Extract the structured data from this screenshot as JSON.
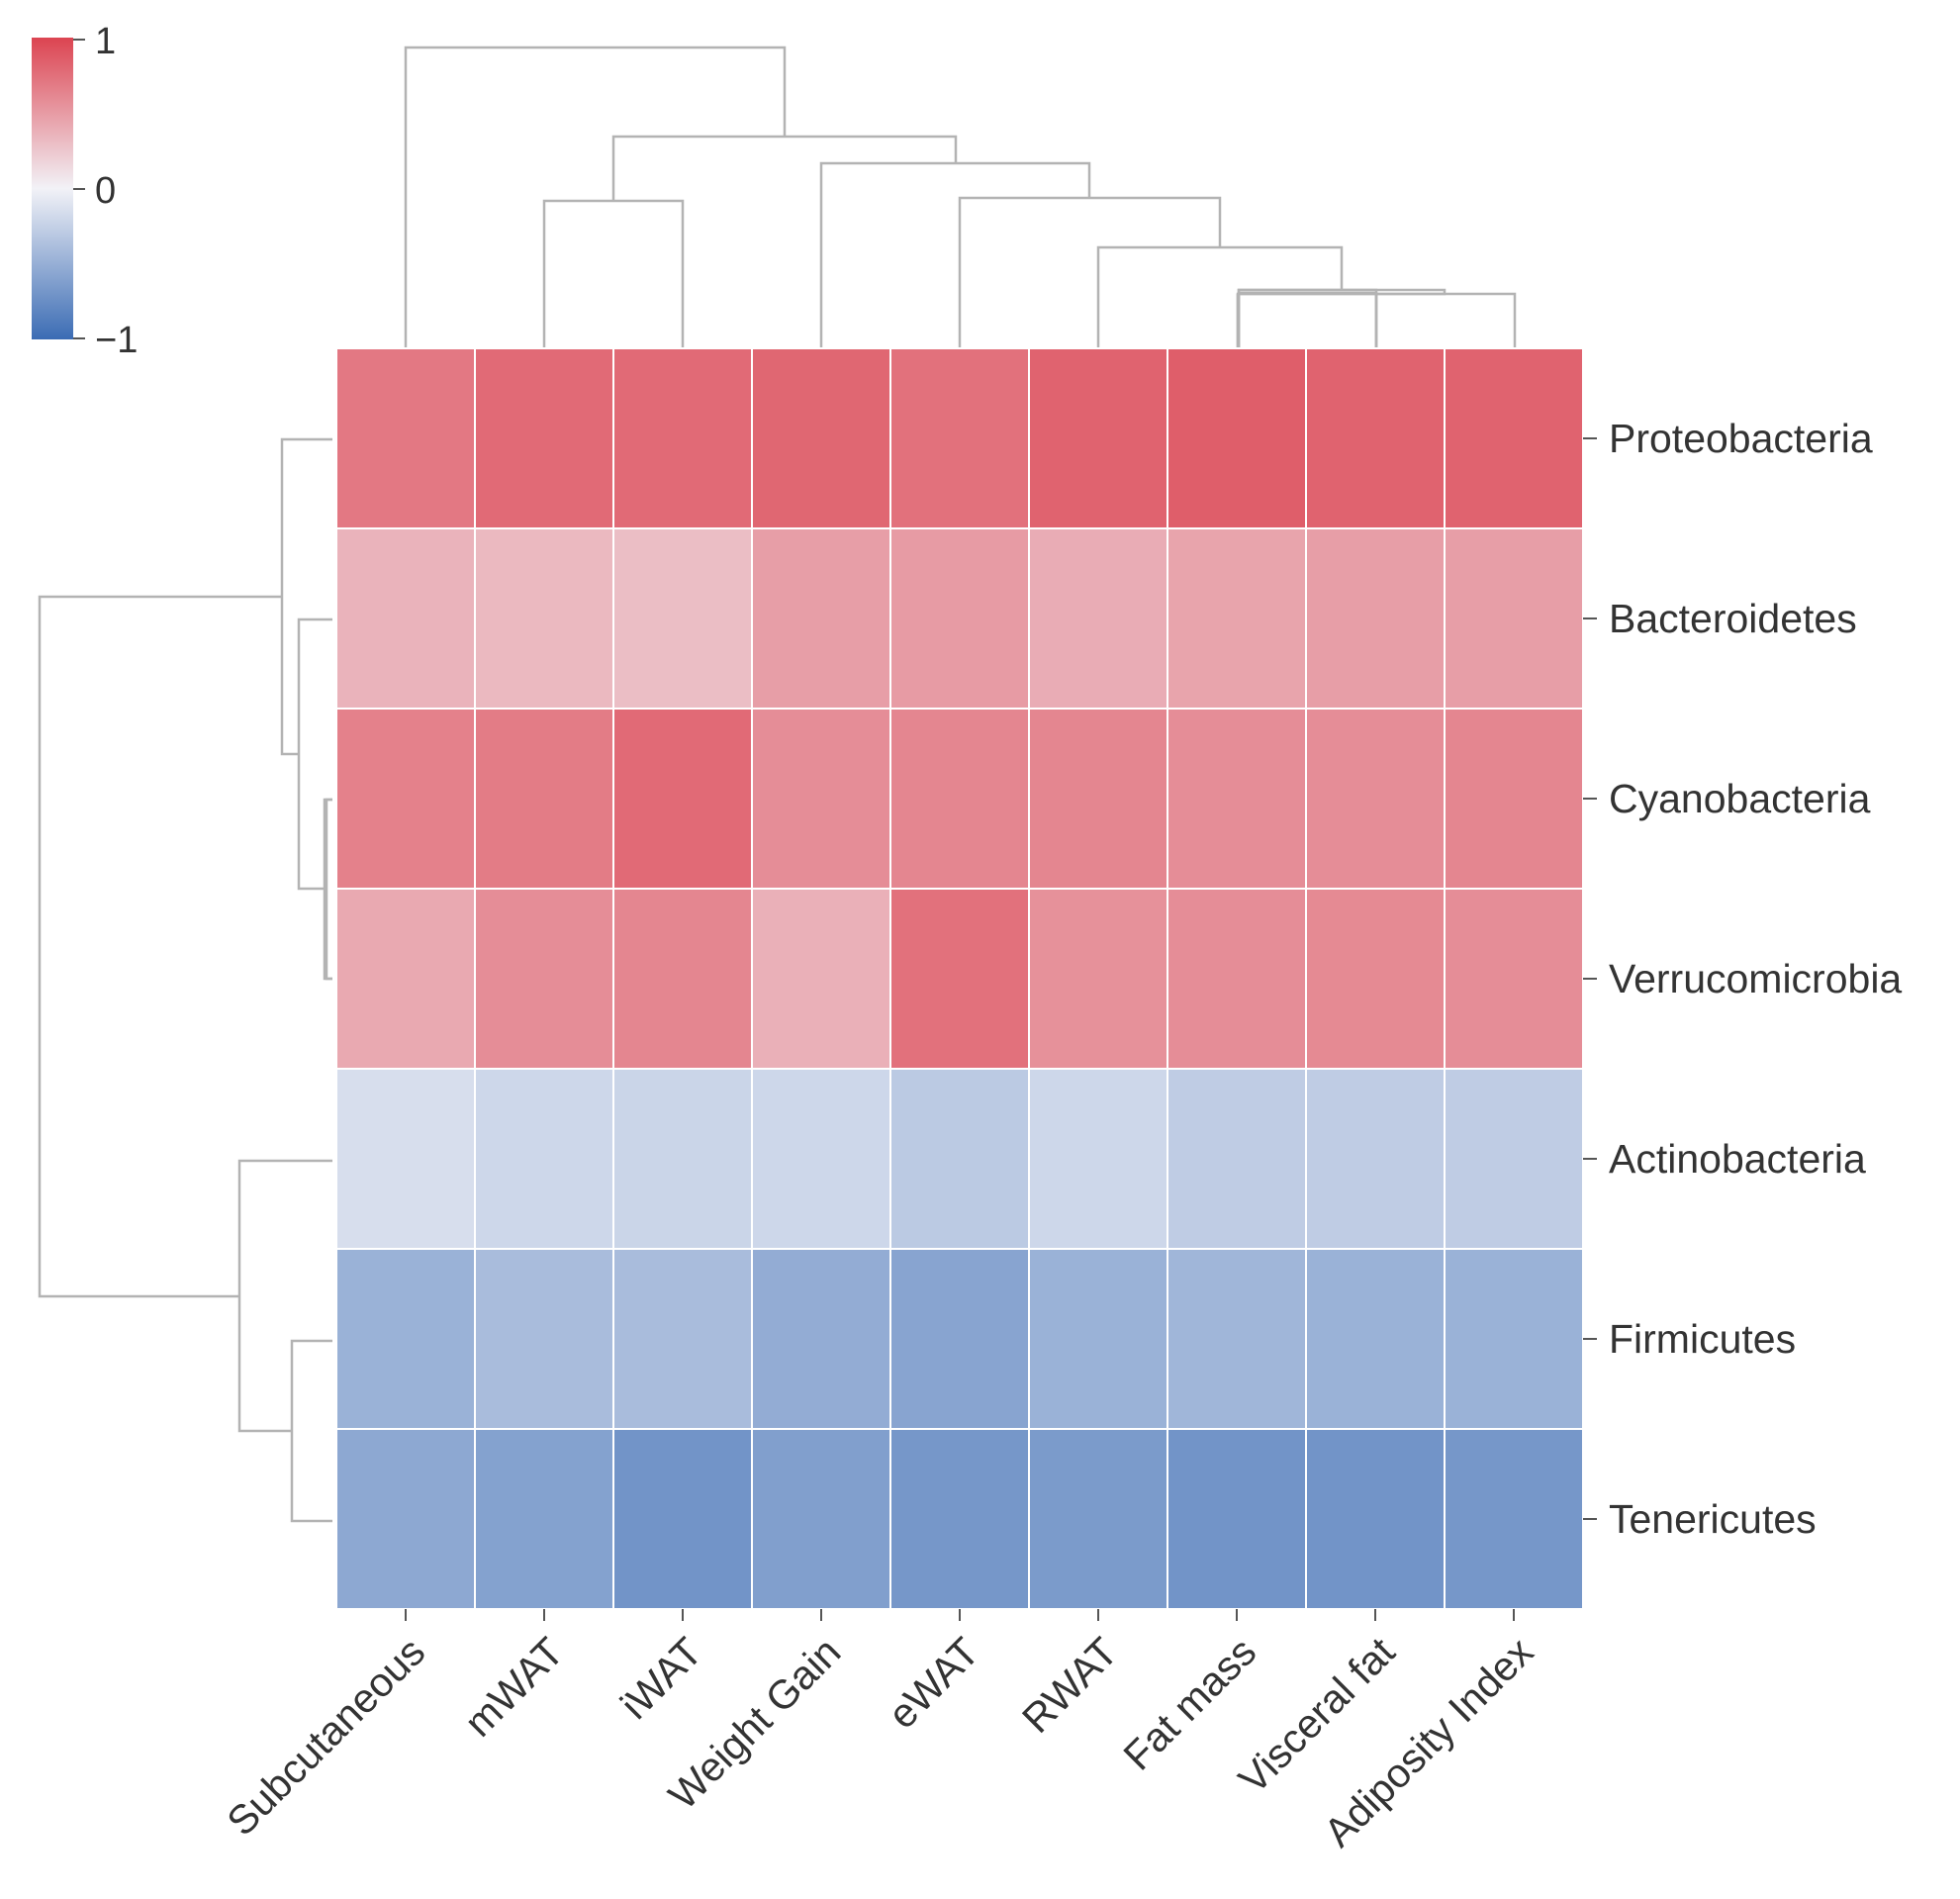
{
  "chart_data": {
    "type": "heatmap",
    "title": "",
    "xlabel": "",
    "ylabel": "",
    "columns": [
      "Subcutaneous",
      "mWAT",
      "iWAT",
      "Weight Gain",
      "eWAT",
      "RWAT",
      "Fat mass",
      "Visceral fat",
      "Adiposity Index"
    ],
    "rows": [
      "Proteobacteria",
      "Bacteroidetes",
      "Cyanobacteria",
      "Verrucomicrobia",
      "Actinobacteria",
      "Firmicutes",
      "Tenericutes"
    ],
    "values": [
      [
        0.7,
        0.78,
        0.78,
        0.8,
        0.74,
        0.82,
        0.85,
        0.82,
        0.82
      ],
      [
        0.36,
        0.33,
        0.3,
        0.48,
        0.5,
        0.4,
        0.45,
        0.48,
        0.48
      ],
      [
        0.65,
        0.68,
        0.78,
        0.58,
        0.62,
        0.62,
        0.58,
        0.58,
        0.62
      ],
      [
        0.42,
        0.58,
        0.62,
        0.38,
        0.74,
        0.56,
        0.58,
        0.6,
        0.58
      ],
      [
        -0.15,
        -0.2,
        -0.22,
        -0.2,
        -0.3,
        -0.2,
        -0.28,
        -0.28,
        -0.28
      ],
      [
        -0.48,
        -0.4,
        -0.4,
        -0.52,
        -0.58,
        -0.48,
        -0.45,
        -0.48,
        -0.48
      ],
      [
        -0.55,
        -0.6,
        -0.7,
        -0.62,
        -0.68,
        -0.65,
        -0.7,
        -0.7,
        -0.68
      ]
    ],
    "colorbar": {
      "min": -1,
      "max": 1,
      "ticks": [
        "1",
        "0",
        "−1"
      ],
      "position": "top-left"
    },
    "colors": {
      "low": "#3b6cb4",
      "mid": "#f2f2f7",
      "high": "#dc4451"
    },
    "row_dendrogram": "left",
    "column_dendrogram": "top",
    "grid": false
  }
}
